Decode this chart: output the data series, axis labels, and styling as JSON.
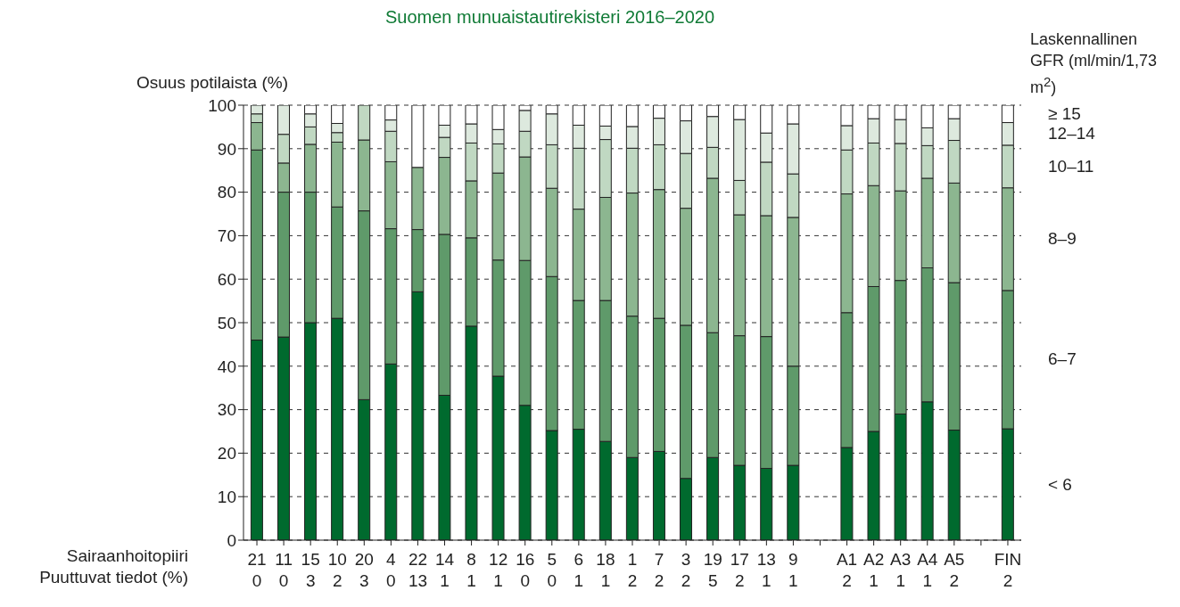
{
  "chart_data": {
    "type": "bar",
    "stacked": true,
    "title": "Suomen munuaistautirekisteri 2016–2020",
    "ylabel": "Osuus potilaista (%)",
    "xlabel": "Sairaanhoitopiiri\nPuuttuvat tiedot (%)",
    "legend_title": "Laskennallinen GFR (ml/min/1,73 m$^{2}$)",
    "categories": [
      "21\n0",
      "11\n0",
      "15\n3",
      "10\n2",
      "20\n3",
      "4\n0",
      "22\n13",
      "14\n1",
      "8\n1",
      "12\n1",
      "16\n0",
      "5\n0",
      "6\n1",
      "18\n1",
      "1\n2",
      "7\n2",
      "3\n2",
      "19\n5",
      "17\n2",
      "13\n1",
      "9\n1",
      null,
      "A1\n2",
      "A2\n1",
      "A3\n1",
      "A4\n1",
      "A5\n2",
      null,
      "FIN\n2"
    ],
    "series": [
      {
        "name": "< 6",
        "color": "#006a2e",
        "values": [
          46,
          46.7,
          50,
          51,
          32.3,
          40.5,
          57.1,
          33.3,
          49.2,
          37.7,
          31,
          25.2,
          25.5,
          22.7,
          19,
          20.4,
          14.2,
          19,
          17.2,
          16.5,
          17.2,
          null,
          21.3,
          25,
          29,
          31.8,
          25.3,
          null,
          25.6
        ]
      },
      {
        "name": "6–7",
        "color": "#5f9a6a",
        "values": [
          43.7,
          33.3,
          30,
          25.6,
          43.4,
          31.1,
          14.3,
          37,
          20.3,
          26.7,
          33.3,
          35.4,
          29.6,
          32.4,
          32.5,
          30.6,
          35.2,
          28.7,
          29.8,
          30.3,
          22.8,
          null,
          31,
          33.3,
          30.7,
          30.8,
          33.9,
          null,
          31.8
        ]
      },
      {
        "name": "8–9",
        "color": "#8cb690",
        "values": [
          6.3,
          6.7,
          11,
          14.9,
          16.3,
          15.4,
          14.3,
          17.7,
          13.1,
          20,
          23.8,
          20.3,
          21,
          23.7,
          28.3,
          29.6,
          26.9,
          35.5,
          27.8,
          27.8,
          34.2,
          null,
          27.3,
          23.2,
          20.6,
          20.6,
          22.9,
          null,
          23.6
        ]
      },
      {
        "name": "10–11",
        "color": "#c0d8c2",
        "values": [
          2,
          6.6,
          4,
          2.2,
          8,
          7,
          0,
          4.6,
          8.7,
          6.7,
          5.9,
          10,
          14,
          13.3,
          10.3,
          10.3,
          12.6,
          7.1,
          7.9,
          12.3,
          10,
          null,
          10.1,
          9.8,
          10.9,
          7.5,
          9.8,
          null,
          9.8
        ]
      },
      {
        "name": "12–14",
        "color": "#dde9de",
        "values": [
          2,
          6.7,
          3,
          2.1,
          0,
          2.6,
          0,
          2.8,
          4.4,
          3.3,
          4.8,
          7.1,
          5.3,
          3.1,
          5,
          6.1,
          7.5,
          7.1,
          14,
          6.7,
          11.5,
          null,
          5.6,
          5.6,
          5.5,
          4.1,
          5,
          null,
          5.2
        ]
      },
      {
        "name": "≥ 15",
        "color": "#ffffff",
        "values": [
          0,
          0,
          2,
          4.2,
          0,
          3.4,
          14.3,
          4.6,
          4.3,
          5.6,
          1.2,
          2,
          4.6,
          4.8,
          4.9,
          3,
          3.6,
          2.6,
          3.3,
          6.4,
          4.3,
          null,
          4.7,
          3.1,
          3.3,
          5.2,
          3.1,
          null,
          4
        ]
      }
    ],
    "ylim": [
      0,
      100
    ],
    "yticks": [
      0,
      10,
      20,
      30,
      40,
      50,
      60,
      70,
      80,
      90,
      100
    ],
    "grid": "y"
  }
}
